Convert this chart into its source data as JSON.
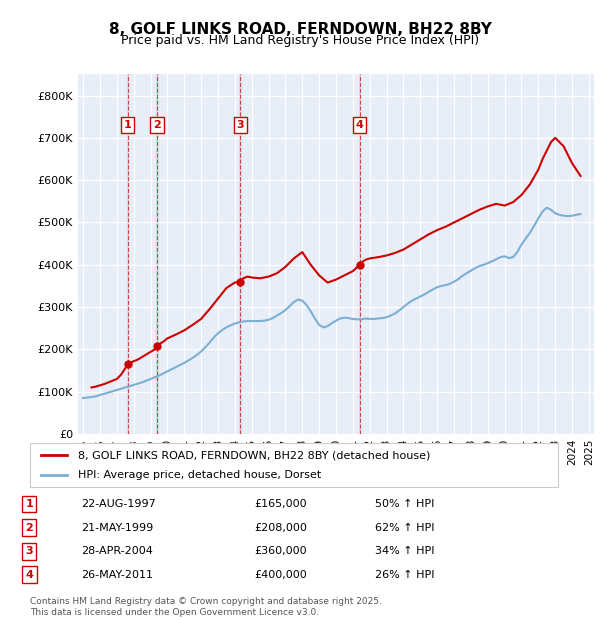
{
  "title": "8, GOLF LINKS ROAD, FERNDOWN, BH22 8BY",
  "subtitle": "Price paid vs. HM Land Registry's House Price Index (HPI)",
  "ylabel": "",
  "background_color": "#ffffff",
  "plot_bg_color": "#e8eef8",
  "grid_color": "#ffffff",
  "hpi_line_color": "#7bafd4",
  "price_line_color": "#cc0000",
  "purchases": [
    {
      "id": 1,
      "date_label": "22-AUG-1997",
      "date_x": 1997.64,
      "price": 165000,
      "pct": "50% ↑ HPI"
    },
    {
      "id": 2,
      "date_label": "21-MAY-1999",
      "date_x": 1999.38,
      "price": 208000,
      "pct": "62% ↑ HPI"
    },
    {
      "id": 3,
      "date_label": "28-APR-2004",
      "date_x": 2004.32,
      "price": 360000,
      "pct": "34% ↑ HPI"
    },
    {
      "id": 4,
      "date_label": "26-MAY-2011",
      "date_x": 2011.4,
      "price": 400000,
      "pct": "26% ↑ HPI"
    }
  ],
  "hpi_x": [
    1995.0,
    1995.25,
    1995.5,
    1995.75,
    1996.0,
    1996.25,
    1996.5,
    1996.75,
    1997.0,
    1997.25,
    1997.5,
    1997.75,
    1998.0,
    1998.25,
    1998.5,
    1998.75,
    1999.0,
    1999.25,
    1999.5,
    1999.75,
    2000.0,
    2000.25,
    2000.5,
    2000.75,
    2001.0,
    2001.25,
    2001.5,
    2001.75,
    2002.0,
    2002.25,
    2002.5,
    2002.75,
    2003.0,
    2003.25,
    2003.5,
    2003.75,
    2004.0,
    2004.25,
    2004.5,
    2004.75,
    2005.0,
    2005.25,
    2005.5,
    2005.75,
    2006.0,
    2006.25,
    2006.5,
    2006.75,
    2007.0,
    2007.25,
    2007.5,
    2007.75,
    2008.0,
    2008.25,
    2008.5,
    2008.75,
    2009.0,
    2009.25,
    2009.5,
    2009.75,
    2010.0,
    2010.25,
    2010.5,
    2010.75,
    2011.0,
    2011.25,
    2011.5,
    2011.75,
    2012.0,
    2012.25,
    2012.5,
    2012.75,
    2013.0,
    2013.25,
    2013.5,
    2013.75,
    2014.0,
    2014.25,
    2014.5,
    2014.75,
    2015.0,
    2015.25,
    2015.5,
    2015.75,
    2016.0,
    2016.25,
    2016.5,
    2016.75,
    2017.0,
    2017.25,
    2017.5,
    2017.75,
    2018.0,
    2018.25,
    2018.5,
    2018.75,
    2019.0,
    2019.25,
    2019.5,
    2019.75,
    2020.0,
    2020.25,
    2020.5,
    2020.75,
    2021.0,
    2021.25,
    2021.5,
    2021.75,
    2022.0,
    2022.25,
    2022.5,
    2022.75,
    2023.0,
    2023.25,
    2023.5,
    2023.75,
    2024.0,
    2024.25,
    2024.5
  ],
  "hpi_y": [
    85000,
    86000,
    87500,
    89000,
    92000,
    95000,
    98000,
    101000,
    104000,
    107000,
    110000,
    113000,
    116000,
    119000,
    122000,
    126000,
    130000,
    134000,
    138000,
    143000,
    148000,
    153000,
    158000,
    163000,
    168000,
    174000,
    180000,
    187000,
    195000,
    205000,
    216000,
    228000,
    238000,
    246000,
    252000,
    257000,
    261000,
    264000,
    266000,
    267000,
    267000,
    267000,
    267000,
    268000,
    270000,
    274000,
    280000,
    286000,
    293000,
    302000,
    312000,
    318000,
    315000,
    305000,
    290000,
    273000,
    258000,
    252000,
    255000,
    262000,
    268000,
    273000,
    275000,
    274000,
    272000,
    271000,
    271000,
    273000,
    272000,
    272000,
    273000,
    274000,
    276000,
    280000,
    285000,
    292000,
    300000,
    308000,
    315000,
    320000,
    325000,
    330000,
    336000,
    342000,
    347000,
    350000,
    352000,
    355000,
    360000,
    366000,
    374000,
    380000,
    386000,
    392000,
    397000,
    400000,
    404000,
    408000,
    413000,
    418000,
    420000,
    416000,
    418000,
    430000,
    448000,
    462000,
    476000,
    492000,
    510000,
    526000,
    535000,
    530000,
    522000,
    518000,
    516000,
    515000,
    516000,
    518000,
    520000
  ],
  "price_x": [
    1995.5,
    1995.75,
    1996.0,
    1996.25,
    1996.5,
    1996.75,
    1997.0,
    1997.25,
    1997.5,
    1997.64,
    1997.75,
    1998.0,
    1998.25,
    1998.5,
    1998.75,
    1999.0,
    1999.25,
    1999.38,
    1999.5,
    1999.75,
    2000.0,
    2000.5,
    2001.0,
    2001.5,
    2002.0,
    2002.5,
    2003.0,
    2003.5,
    2004.0,
    2004.32,
    2004.5,
    2004.75,
    2005.0,
    2005.5,
    2006.0,
    2006.5,
    2007.0,
    2007.5,
    2008.0,
    2008.5,
    2009.0,
    2009.5,
    2010.0,
    2010.5,
    2011.0,
    2011.4,
    2011.5,
    2011.75,
    2012.0,
    2012.5,
    2013.0,
    2013.5,
    2014.0,
    2014.5,
    2015.0,
    2015.5,
    2016.0,
    2016.5,
    2017.0,
    2017.5,
    2018.0,
    2018.5,
    2019.0,
    2019.5,
    2020.0,
    2020.5,
    2021.0,
    2021.5,
    2022.0,
    2022.25,
    2022.5,
    2022.75,
    2023.0,
    2023.5,
    2024.0,
    2024.5
  ],
  "price_y": [
    110000,
    112000,
    115000,
    118000,
    122000,
    126000,
    130000,
    140000,
    155000,
    165000,
    168000,
    172000,
    176000,
    182000,
    188000,
    194000,
    200000,
    208000,
    212000,
    218000,
    226000,
    235000,
    245000,
    258000,
    272000,
    295000,
    320000,
    345000,
    358000,
    360000,
    368000,
    372000,
    370000,
    368000,
    372000,
    380000,
    395000,
    415000,
    430000,
    400000,
    375000,
    358000,
    365000,
    375000,
    385000,
    400000,
    405000,
    412000,
    415000,
    418000,
    422000,
    428000,
    436000,
    448000,
    460000,
    472000,
    482000,
    490000,
    500000,
    510000,
    520000,
    530000,
    538000,
    544000,
    540000,
    548000,
    565000,
    590000,
    625000,
    650000,
    670000,
    690000,
    700000,
    680000,
    640000,
    610000
  ],
  "footer": "Contains HM Land Registry data © Crown copyright and database right 2025.\nThis data is licensed under the Open Government Licence v3.0.",
  "legend_entries": [
    "8, GOLF LINKS ROAD, FERNDOWN, BH22 8BY (detached house)",
    "HPI: Average price, detached house, Dorset"
  ],
  "xtick_years": [
    1995,
    1996,
    1997,
    1998,
    1999,
    2000,
    2001,
    2002,
    2003,
    2004,
    2005,
    2006,
    2007,
    2008,
    2009,
    2010,
    2011,
    2012,
    2013,
    2014,
    2015,
    2016,
    2017,
    2018,
    2019,
    2020,
    2021,
    2022,
    2023,
    2024,
    2025
  ],
  "ytick_vals": [
    0,
    100000,
    200000,
    300000,
    400000,
    500000,
    600000,
    700000,
    800000
  ],
  "ytick_labels": [
    "£0",
    "£100K",
    "£200K",
    "£300K",
    "£400K",
    "£500K",
    "£600K",
    "£700K",
    "£800K"
  ],
  "ylim": [
    0,
    850000
  ],
  "xlim": [
    1994.7,
    2025.3
  ]
}
